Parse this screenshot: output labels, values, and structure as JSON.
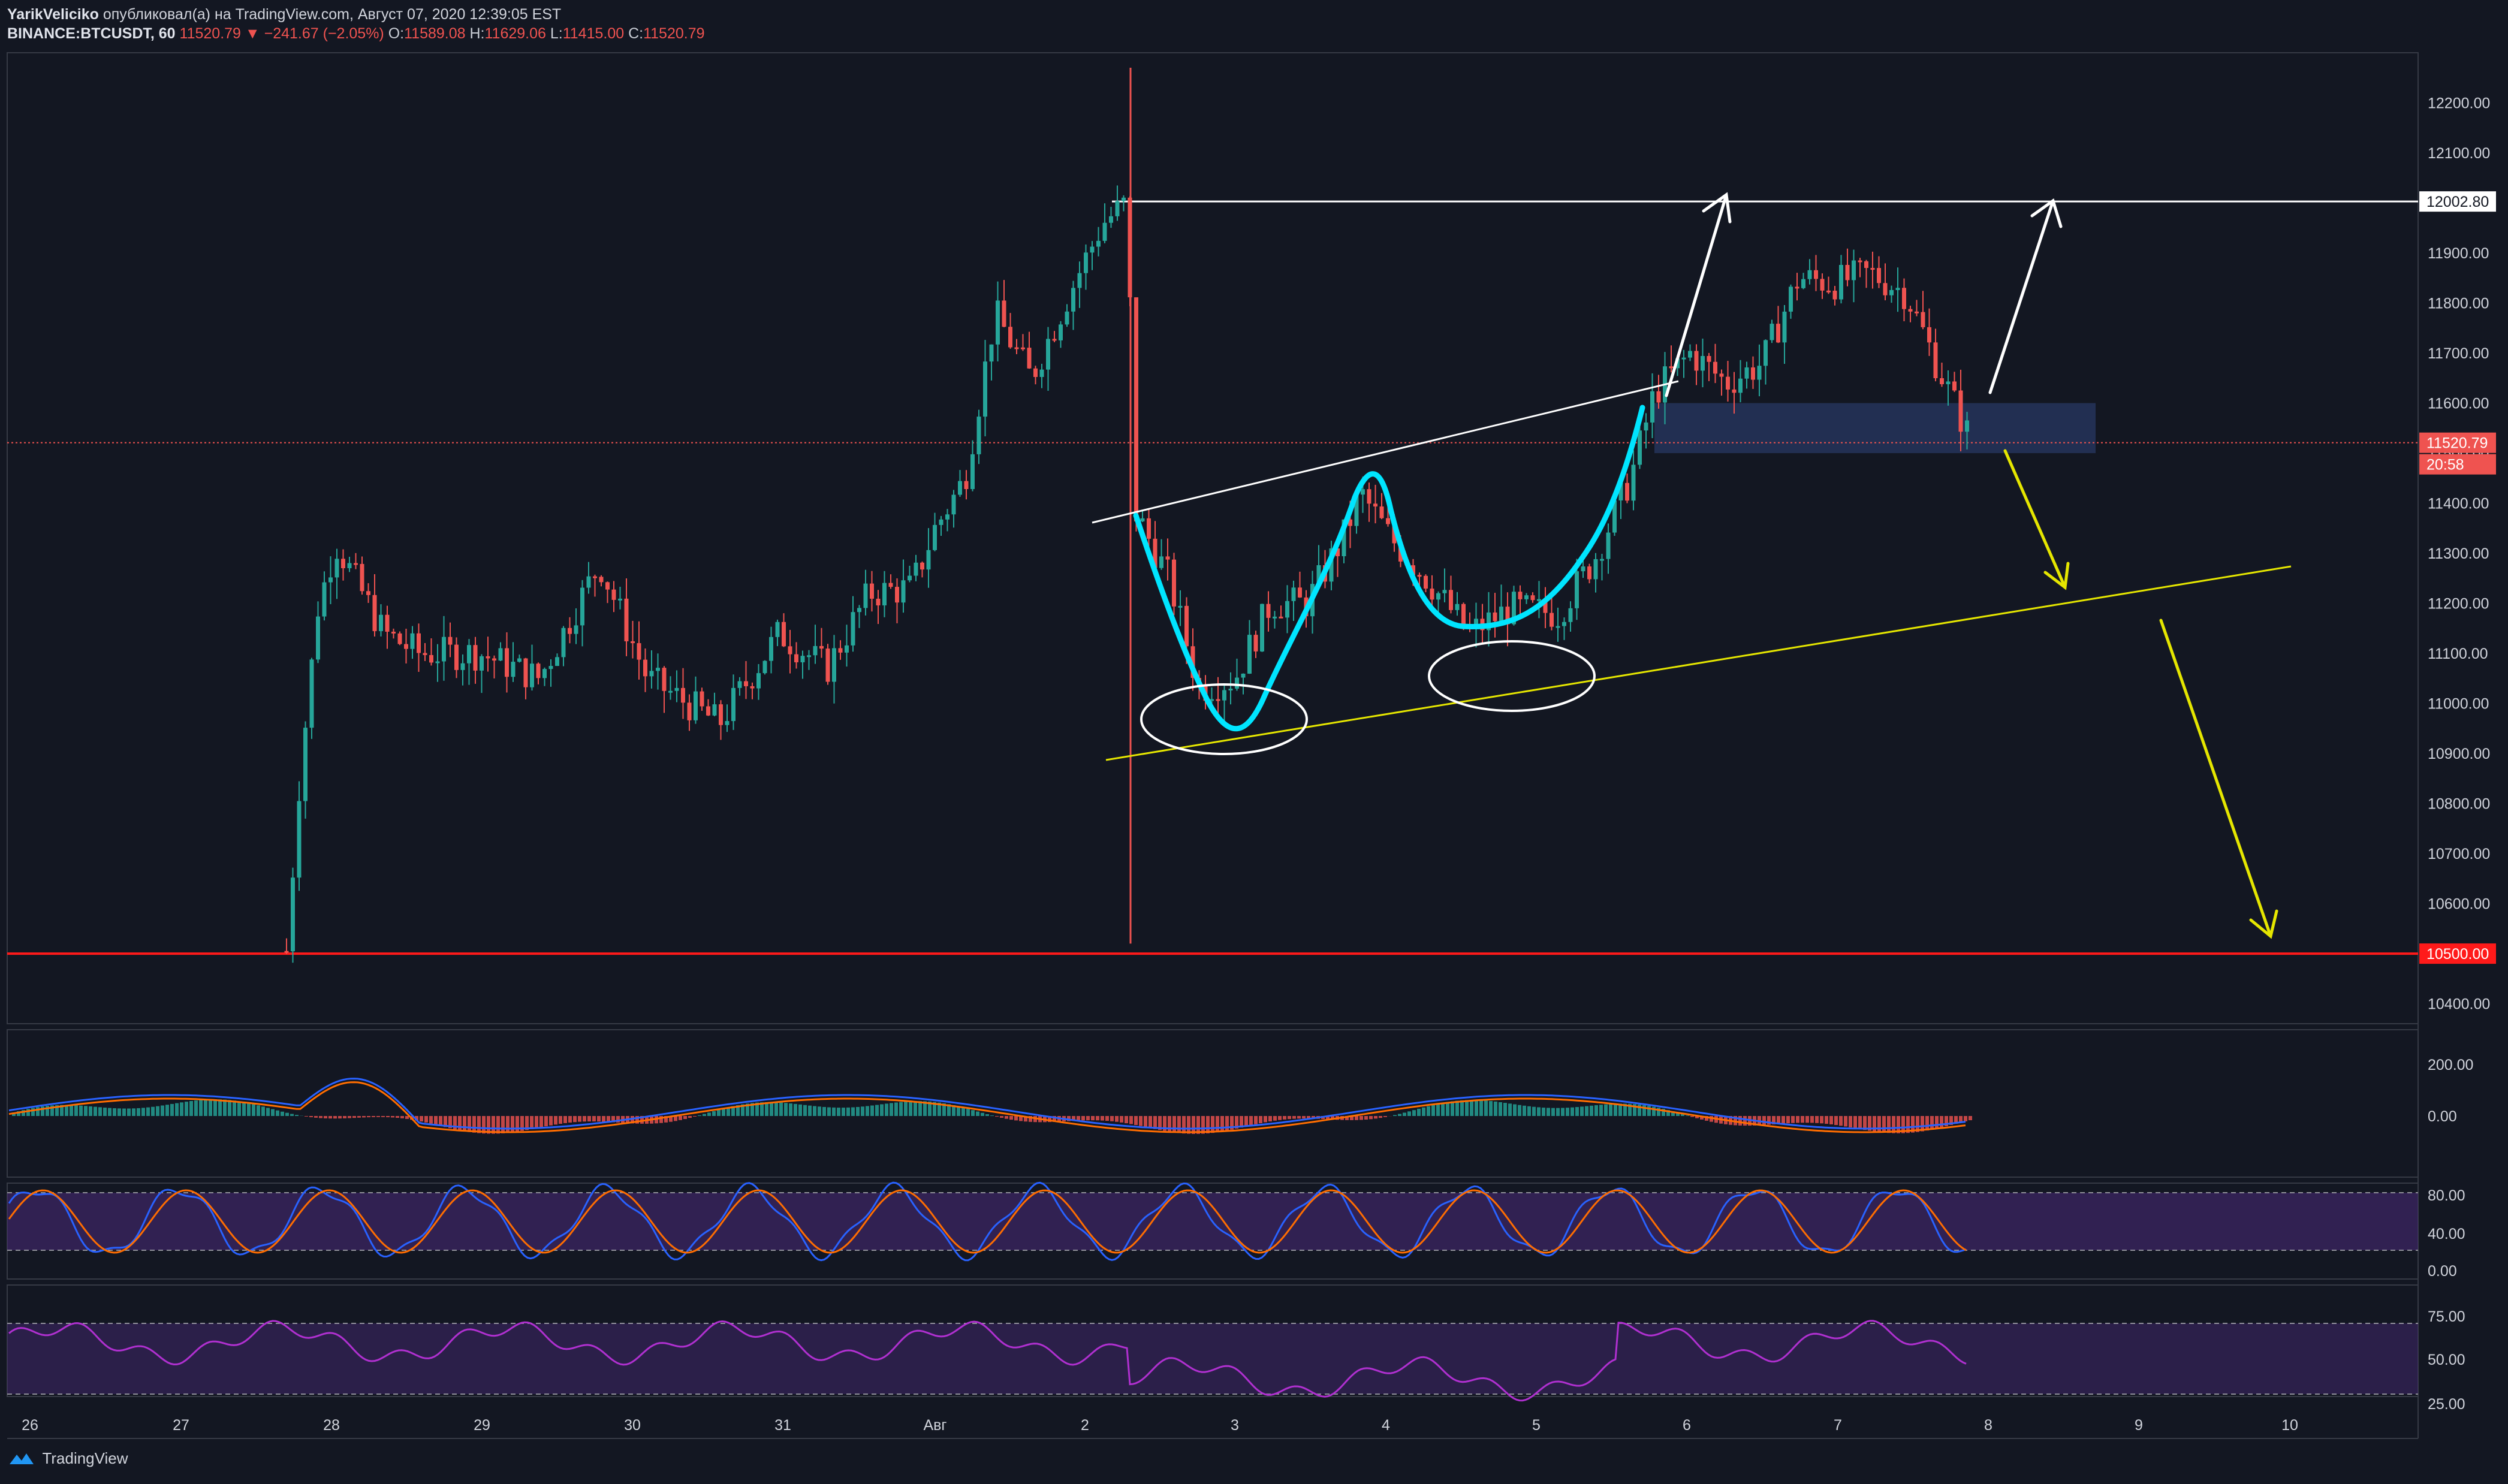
{
  "header": {
    "author": "YarikVeliciko",
    "published_text": "опубликовал(а) на TradingView.com, Август 07, 2020 12:39:05 EST",
    "symbol": "BINANCE:BTCUSDT, 60",
    "last": "11520.79",
    "change": "▼ −241.67 (−2.05%)",
    "o_label": "O:",
    "o_value": "11589.08",
    "h_label": "H:",
    "h_value": "11629.06",
    "l_label": "L:",
    "l_value": "11415.00",
    "c_label": "C:",
    "c_value": "11520.79"
  },
  "chart_data": {
    "type": "candlestick",
    "main": {
      "y_ticks": [
        12200,
        12100,
        12000,
        11900,
        11800,
        11700,
        11600,
        11500,
        11400,
        11300,
        11200,
        11100,
        11000,
        10900,
        10800,
        10700,
        10600,
        10500,
        10400
      ],
      "ylim": [
        10360,
        12300
      ],
      "resistance_level": "12002.80",
      "support_level": "10500.00",
      "current_price": "11520.79",
      "countdown": "20:58",
      "demand_zone": [
        11500,
        11600
      ]
    },
    "x_ticks": [
      "26",
      "27",
      "28",
      "29",
      "30",
      "31",
      "Авг",
      "2",
      "3",
      "4",
      "5",
      "6",
      "7",
      "8",
      "9",
      "10"
    ],
    "macd": {
      "y_ticks": [
        "200.00",
        "0.00"
      ]
    },
    "stoch": {
      "y_ticks": [
        "80.00",
        "40.00",
        "0.00"
      ],
      "band": [
        20,
        80
      ]
    },
    "rsi": {
      "y_ticks": [
        "75.00",
        "50.00",
        "25.00"
      ],
      "band": [
        30,
        70
      ]
    },
    "colors": {
      "up": "#26a69a",
      "down": "#ef5350",
      "pattern": "#00e5ff",
      "trend": "#e5e600"
    }
  },
  "footer": {
    "brand": "TradingView"
  }
}
